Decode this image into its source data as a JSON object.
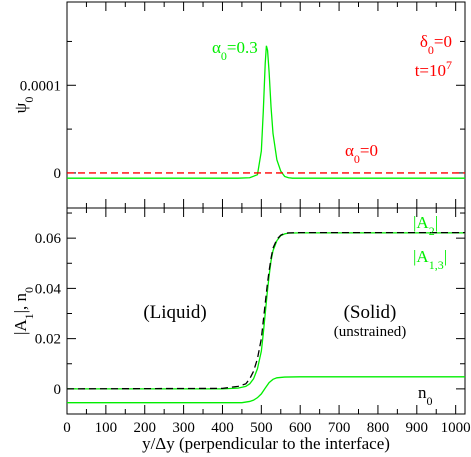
{
  "chart_data": [
    {
      "type": "line",
      "ylabel": "ψ0",
      "xlim": [
        0,
        1024
      ],
      "ylim": [
        -4e-05,
        0.000195
      ],
      "yticks": [
        {
          "value": 0,
          "label": "0"
        },
        {
          "value": 0.0001,
          "label": "0.0001"
        }
      ],
      "xticks": [
        0,
        100,
        200,
        300,
        400,
        500,
        600,
        700,
        800,
        900,
        1000
      ],
      "legend_text": {
        "line1": "δ0=0",
        "line2": "t=10",
        "line2_sup": "7"
      },
      "annotations": [
        {
          "text": "α0=0.3",
          "for_series": "alpha_0.3"
        },
        {
          "text": "α0=0",
          "for_series": "alpha_0"
        }
      ],
      "series": [
        {
          "id": "alpha_0.3",
          "color": "#00ee00",
          "style": "solid",
          "x": [
            0,
            440,
            470,
            490,
            500,
            505,
            510,
            513,
            516,
            520,
            525,
            530,
            540,
            550,
            560,
            570,
            580,
            600,
            650,
            1024
          ],
          "y": [
            -6e-06,
            -6e-06,
            -5.5e-06,
            -2e-06,
            2.5e-05,
            7e-05,
            0.000125,
            0.000145,
            0.00014,
            0.000115,
            7.5e-05,
            4.5e-05,
            1.5e-05,
            2e-06,
            -4e-06,
            -5.5e-06,
            -6e-06,
            -6e-06,
            -6e-06,
            -6e-06
          ]
        },
        {
          "id": "alpha_0",
          "color": "#ff0000",
          "style": "dashed",
          "x": [
            0,
            1024
          ],
          "y": [
            0,
            0
          ]
        }
      ]
    },
    {
      "type": "line",
      "ylabel": "|A1|, n0",
      "xlabel": "y/Δy (perpendicular to the interface)",
      "xlim": [
        0,
        1024
      ],
      "ylim": [
        -0.01,
        0.072
      ],
      "yticks": [
        {
          "value": 0,
          "label": "0"
        },
        {
          "value": 0.02,
          "label": "0.02"
        },
        {
          "value": 0.04,
          "label": "0.04"
        },
        {
          "value": 0.06,
          "label": "0.06"
        }
      ],
      "xticks": [
        0,
        100,
        200,
        300,
        400,
        500,
        600,
        700,
        800,
        900,
        1000
      ],
      "annotations": [
        {
          "text": "(Liquid)"
        },
        {
          "text": "(Solid)"
        },
        {
          "text": "(unstrained)"
        },
        {
          "text": "|A2|",
          "for_series": "A2"
        },
        {
          "text": "|A1,3|",
          "for_series": "A13"
        },
        {
          "text": "n0",
          "for_series": "n0"
        }
      ],
      "series": [
        {
          "id": "A13",
          "color": "#00ee00",
          "style": "solid",
          "x": [
            0,
            400,
            440,
            460,
            470,
            480,
            490,
            500,
            505,
            510,
            515,
            520,
            525,
            530,
            540,
            550,
            560,
            570,
            600,
            700,
            1024
          ],
          "y": [
            0,
            0,
            0.0003,
            0.001,
            0.002,
            0.004,
            0.008,
            0.015,
            0.022,
            0.03,
            0.038,
            0.045,
            0.051,
            0.055,
            0.059,
            0.061,
            0.0617,
            0.062,
            0.0621,
            0.0621,
            0.0621
          ]
        },
        {
          "id": "A2",
          "color": "#000000",
          "style": "dashed",
          "x": [
            0,
            400,
            440,
            460,
            470,
            480,
            490,
            500,
            505,
            510,
            515,
            520,
            525,
            530,
            540,
            550,
            560,
            570,
            600,
            700,
            1024
          ],
          "y": [
            0,
            0.0002,
            0.001,
            0.002,
            0.004,
            0.007,
            0.012,
            0.02,
            0.027,
            0.034,
            0.041,
            0.047,
            0.052,
            0.056,
            0.0595,
            0.0612,
            0.0619,
            0.0621,
            0.0622,
            0.0622,
            0.0622
          ]
        },
        {
          "id": "n0",
          "color": "#00ee00",
          "style": "solid",
          "x": [
            0,
            450,
            470,
            480,
            490,
            500,
            510,
            520,
            530,
            540,
            560,
            600,
            700,
            1024
          ],
          "y": [
            -0.0055,
            -0.0055,
            -0.005,
            -0.0045,
            -0.0035,
            -0.002,
            0.0003,
            0.0025,
            0.0038,
            0.0044,
            0.0047,
            0.0048,
            0.0048,
            0.0048
          ]
        }
      ]
    }
  ]
}
